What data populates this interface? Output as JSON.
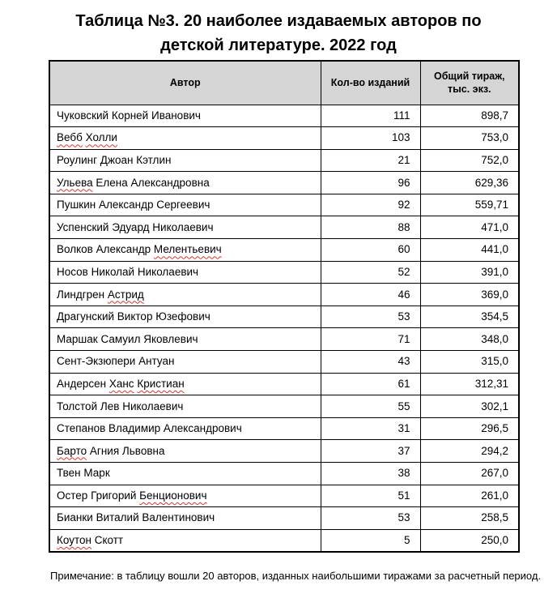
{
  "colors": {
    "header_bg": "#d5d5d5",
    "table_border": "#000000",
    "squiggle_red": "#e8321f",
    "text": "#000000"
  },
  "page": {
    "title_lines": [
      "Таблица №3. 20 наиболее издаваемых авторов по",
      "детской литературе. 2022 год"
    ],
    "note": "Примечание: в таблицу вошли 20 авторов, изданных наибольшими тиражами за расчетный период."
  },
  "table": {
    "columns": [
      "Автор",
      "Кол-во изданий",
      "Общий тираж, тыс. экз."
    ],
    "rows": [
      {
        "author": "Чуковский Корней Иванович",
        "editions": "111",
        "circulation": "898,7",
        "misspelled": []
      },
      {
        "author": "Вебб Холли",
        "editions": "103",
        "circulation": "753,0",
        "misspelled": [
          "Вебб",
          "Холли"
        ]
      },
      {
        "author": "Роулинг Джоан Кэтлин",
        "editions": "21",
        "circulation": "752,0",
        "misspelled": []
      },
      {
        "author": "Ульева Елена Александровна",
        "editions": "96",
        "circulation": "629,36",
        "misspelled": [
          "Ульева"
        ]
      },
      {
        "author": "Пушкин Александр Сергеевич",
        "editions": "92",
        "circulation": "559,71",
        "misspelled": []
      },
      {
        "author": "Успенский Эдуард Николаевич",
        "editions": "88",
        "circulation": "471,0",
        "misspelled": []
      },
      {
        "author": "Волков Александр Мелентьевич",
        "editions": "60",
        "circulation": "441,0",
        "misspelled": [
          "Мелентьевич"
        ]
      },
      {
        "author": "Носов Николай Николаевич",
        "editions": "52",
        "circulation": "391,0",
        "misspelled": []
      },
      {
        "author": "Линдгрен Астрид",
        "editions": "46",
        "circulation": "369,0",
        "misspelled": [
          "Астрид"
        ]
      },
      {
        "author": "Драгунский Виктор Юзефович",
        "editions": "53",
        "circulation": "354,5",
        "misspelled": []
      },
      {
        "author": "Маршак Самуил Яковлевич",
        "editions": "71",
        "circulation": "348,0",
        "misspelled": []
      },
      {
        "author": "Сент-Экзюпери Антуан",
        "editions": "43",
        "circulation": "315,0",
        "misspelled": []
      },
      {
        "author": "Андерсен Ханс Кристиан",
        "editions": "61",
        "circulation": "312,31",
        "misspelled": [
          "Ханс",
          "Кристиан"
        ]
      },
      {
        "author": "Толстой Лев Николаевич",
        "editions": "55",
        "circulation": "302,1",
        "misspelled": []
      },
      {
        "author": "Степанов Владимир Александрович",
        "editions": "31",
        "circulation": "296,5",
        "misspelled": []
      },
      {
        "author": "Барто Агния Львовна",
        "editions": "37",
        "circulation": "294,2",
        "misspelled": [
          "Барто"
        ]
      },
      {
        "author": "Твен Марк",
        "editions": "38",
        "circulation": "267,0",
        "misspelled": []
      },
      {
        "author": "Остер Григорий Бенционович",
        "editions": "51",
        "circulation": "261,0",
        "misspelled": [
          "Бенционович"
        ]
      },
      {
        "author": "Бианки Виталий Валентинович",
        "editions": "53",
        "circulation": "258,5",
        "misspelled": []
      },
      {
        "author": "Коутон Скотт",
        "editions": "5",
        "circulation": "250,0",
        "misspelled": [
          "Коутон"
        ]
      }
    ]
  }
}
